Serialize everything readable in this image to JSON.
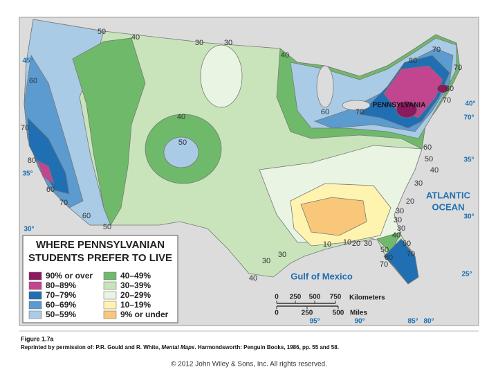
{
  "map": {
    "contour_labels": [
      50,
      40,
      30,
      30,
      40,
      60,
      70,
      80,
      60,
      70,
      60,
      50,
      40,
      50,
      80,
      70,
      70,
      70,
      60,
      80,
      70,
      60,
      50,
      40,
      30,
      20,
      30,
      30,
      30,
      40,
      50,
      60,
      50,
      70,
      70,
      10,
      10,
      20,
      30,
      30,
      40,
      30
    ],
    "graticule_labels": [
      "45°",
      "35°",
      "30°",
      "40°",
      "70°",
      "35°",
      "30°",
      "25°",
      "95°",
      "90°",
      "85°",
      "80°"
    ],
    "place_labels": {
      "state": "PENNSYLVANIA",
      "ocean": [
        "ATLANTIC",
        "OCEAN"
      ],
      "gulf": "Gulf of Mexico"
    },
    "legend": {
      "title": [
        "WHERE PENNSYLVANIAN",
        "STUDENTS PREFER TO LIVE"
      ],
      "items": [
        {
          "label": "90% or over",
          "color": "#8b1a5e"
        },
        {
          "label": "80–89%",
          "color": "#c1458f"
        },
        {
          "label": "70–79%",
          "color": "#1f6fb2"
        },
        {
          "label": "60–69%",
          "color": "#5b9bd0"
        },
        {
          "label": "50–59%",
          "color": "#a9cbe6"
        },
        {
          "label": "40–49%",
          "color": "#6fba6a"
        },
        {
          "label": "30–39%",
          "color": "#c9e4bb"
        },
        {
          "label": "20–29%",
          "color": "#e9f4e2"
        },
        {
          "label": "10–19%",
          "color": "#fff3b0"
        },
        {
          "label": "9% or under",
          "color": "#f8c77a"
        }
      ]
    },
    "scale": {
      "km_ticks": [
        0,
        250,
        500,
        750
      ],
      "km_unit": "Kilometers",
      "mile_ticks": [
        0,
        250,
        500
      ],
      "mile_unit": "Miles"
    }
  },
  "caption": {
    "figure": "Figure 1.7a",
    "credit": [
      "Reprinted by permission of: P.R. Gould and R. White, ",
      "Mental Maps",
      ". Harmondsworth: Penguin Books, 1986, pp. 55 and 58."
    ]
  },
  "footer": "© 2012 John Wiley & Sons, Inc. All rights reserved."
}
